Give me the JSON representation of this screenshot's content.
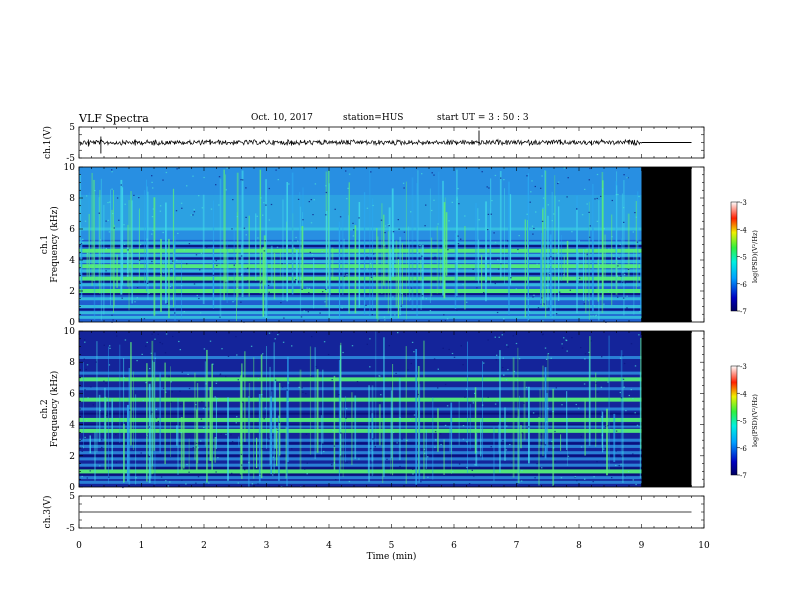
{
  "header": {
    "title": "VLF Spectra",
    "date": "Oct. 10, 2017",
    "station": "station=HUS",
    "start": "start  UT =   3 : 50 : 3"
  },
  "chart_data": [
    {
      "type": "line",
      "panel": "ch1-waveform",
      "ylabel": "ch.1(V)",
      "ylim": [
        -5,
        5
      ],
      "yticks": [
        "5",
        "-5"
      ],
      "xlim": [
        0,
        10
      ],
      "data_end_min": 9.0,
      "trace_end_min": 9.8,
      "baseline_v": 0
    },
    {
      "type": "heatmap",
      "panel": "ch1-spectrogram",
      "ylabel": "ch.1\nFrequency (kHz)",
      "ylim": [
        0,
        10
      ],
      "yticks": [
        "0",
        "2",
        "4",
        "6",
        "8",
        "10"
      ],
      "xlim": [
        0,
        10
      ],
      "data_end_min": 9.0,
      "no_data_end_min": 9.8,
      "colorbar": {
        "label": "log(PSD)(V²/Hz)",
        "range": [
          -7,
          -3
        ],
        "ticks": [
          "-3",
          "-4",
          "-5",
          "-6",
          "-7"
        ]
      },
      "bands_khz": [
        0.3,
        0.6,
        1.0,
        1.5,
        2.0,
        2.4,
        2.8,
        3.3,
        3.6,
        3.9,
        4.3,
        4.6,
        5.1,
        6.0
      ],
      "strong_bands_khz": [
        2.0,
        2.8,
        3.6,
        4.6
      ]
    },
    {
      "type": "heatmap",
      "panel": "ch2-spectrogram",
      "ylabel": "ch.2\nFrequency (kHz)",
      "ylim": [
        0,
        10
      ],
      "yticks": [
        "0",
        "2",
        "4",
        "6",
        "8",
        "10"
      ],
      "xlim": [
        0,
        10
      ],
      "data_end_min": 9.0,
      "no_data_end_min": 9.8,
      "colorbar": {
        "label": "log(PSD)(V²/Hz)",
        "range": [
          -7,
          -3
        ],
        "ticks": [
          "-3",
          "-4",
          "-5",
          "-6",
          "-7"
        ]
      },
      "bands_khz": [
        0.3,
        0.6,
        1.0,
        1.4,
        1.8,
        2.2,
        2.6,
        3.0,
        3.6,
        3.9,
        4.3,
        5.0,
        5.6,
        6.3,
        6.9,
        7.3,
        8.3
      ],
      "strong_bands_khz": [
        1.0,
        3.6,
        4.3,
        5.6,
        6.9
      ]
    },
    {
      "type": "line",
      "panel": "ch3-waveform",
      "ylabel": "ch.3(V)",
      "ylim": [
        -5,
        5
      ],
      "yticks": [
        "5",
        "-5"
      ],
      "xlim": [
        0,
        10
      ],
      "trace_end_min": 9.8,
      "baseline_v": 0
    }
  ],
  "xaxis": {
    "label": "Time (min)",
    "ticks": [
      "0",
      "1",
      "2",
      "3",
      "4",
      "5",
      "6",
      "7",
      "8",
      "9",
      "10"
    ]
  },
  "colors": {
    "background_low": "#1a2f9c",
    "background_mid": "#1e73d6",
    "band_cyan": "#3ad0e0",
    "band_green": "#4cf07a",
    "no_data": "#000000"
  }
}
